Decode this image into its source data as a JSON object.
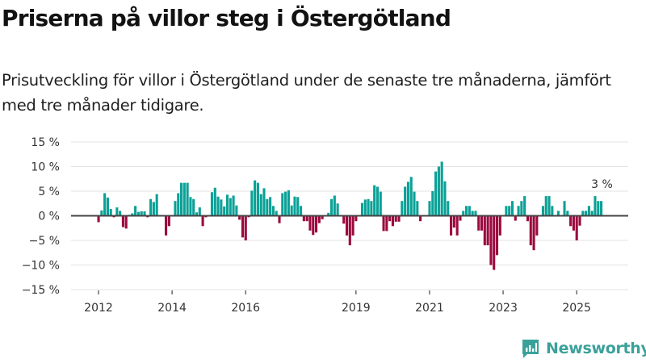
{
  "title": "Priserna på villor steg i Östergötland",
  "subtitle": "Prisutveckling för villor i Östergötland under de senaste tre månaderna, jämfört med tre månader tidigare.",
  "brand": {
    "name": "Newsworthy",
    "icon": "bar-chart-speech-bubble-icon",
    "color": "#3aa19a"
  },
  "colors": {
    "positive": "#0aa197",
    "negative": "#9b0a3e",
    "zero_line": "#444444",
    "grid": "#e3e3e3"
  },
  "chart_data": {
    "type": "bar",
    "title": "Priserna på villor steg i Östergötland",
    "subtitle": "Prisutveckling för villor i Östergötland under de senaste tre månaderna, jämfört med tre månader tidigare.",
    "xlabel": "",
    "ylabel": "",
    "frequency": "monthly",
    "start": "2012-01",
    "end": "2025-09",
    "ylim": [
      -15,
      15
    ],
    "yticks": [
      15,
      10,
      5,
      0,
      -5,
      -10,
      -15
    ],
    "ytick_labels": [
      "15 %",
      "10 %",
      "5 %",
      "0 %",
      "−5 %",
      "−10 %",
      "−15 %"
    ],
    "xticks": [
      "2012",
      "2014",
      "2016",
      "2019",
      "2021",
      "2023",
      "2025"
    ],
    "grid": true,
    "legend": "none",
    "annotation": {
      "text": "3 %",
      "at": "last"
    },
    "values": [
      -1.3,
      1.1,
      4.6,
      3.7,
      1.4,
      -0.3,
      1.7,
      1.0,
      -2.3,
      -2.6,
      0.2,
      0.5,
      2.0,
      0.8,
      0.9,
      0.9,
      -0.3,
      3.4,
      2.8,
      4.4,
      0.0,
      0.0,
      -4.0,
      -2.1,
      0.0,
      3.0,
      4.6,
      6.7,
      6.7,
      6.7,
      3.8,
      3.4,
      0.7,
      1.7,
      -2.1,
      -0.3,
      0.0,
      4.8,
      5.7,
      3.9,
      3.3,
      1.9,
      4.3,
      3.6,
      4.1,
      2.1,
      -0.8,
      -4.4,
      -5.0,
      -0.3,
      5.1,
      7.2,
      6.7,
      4.4,
      5.6,
      3.4,
      3.8,
      2.0,
      1.0,
      -1.5,
      4.6,
      4.9,
      5.2,
      2.1,
      3.9,
      3.8,
      2.0,
      -1.1,
      -1.1,
      -3.0,
      -3.9,
      -3.4,
      -1.5,
      -0.7,
      0.0,
      0.6,
      3.4,
      4.1,
      2.5,
      0.0,
      -1.6,
      -4.0,
      -6.0,
      -4.0,
      -1.1,
      0.0,
      2.6,
      3.3,
      3.4,
      3.0,
      6.2,
      5.9,
      4.9,
      -3.1,
      -3.1,
      -1.1,
      -2.1,
      -1.2,
      -1.2,
      3.0,
      5.9,
      6.9,
      7.9,
      4.9,
      3.0,
      -1.1,
      0.0,
      0.0,
      3.0,
      5.0,
      9.0,
      10.0,
      11.0,
      7.0,
      3.0,
      -4.0,
      -2.4,
      -4.0,
      -1.0,
      1.0,
      2.0,
      2.0,
      1.0,
      1.0,
      -3.0,
      -3.0,
      -6.0,
      -6.0,
      -10.0,
      -11.0,
      -8.0,
      -4.0,
      0.0,
      2.0,
      2.0,
      3.0,
      -1.0,
      2.0,
      3.0,
      4.0,
      -1.1,
      -6.0,
      -7.0,
      -4.0,
      0.0,
      2.0,
      4.0,
      4.0,
      2.0,
      0.0,
      1.0,
      0.0,
      3.0,
      1.0,
      -2.1,
      -3.0,
      -5.0,
      -2.0,
      1.0,
      1.0,
      2.0,
      1.0,
      4.0,
      3.0,
      3.0
    ]
  }
}
